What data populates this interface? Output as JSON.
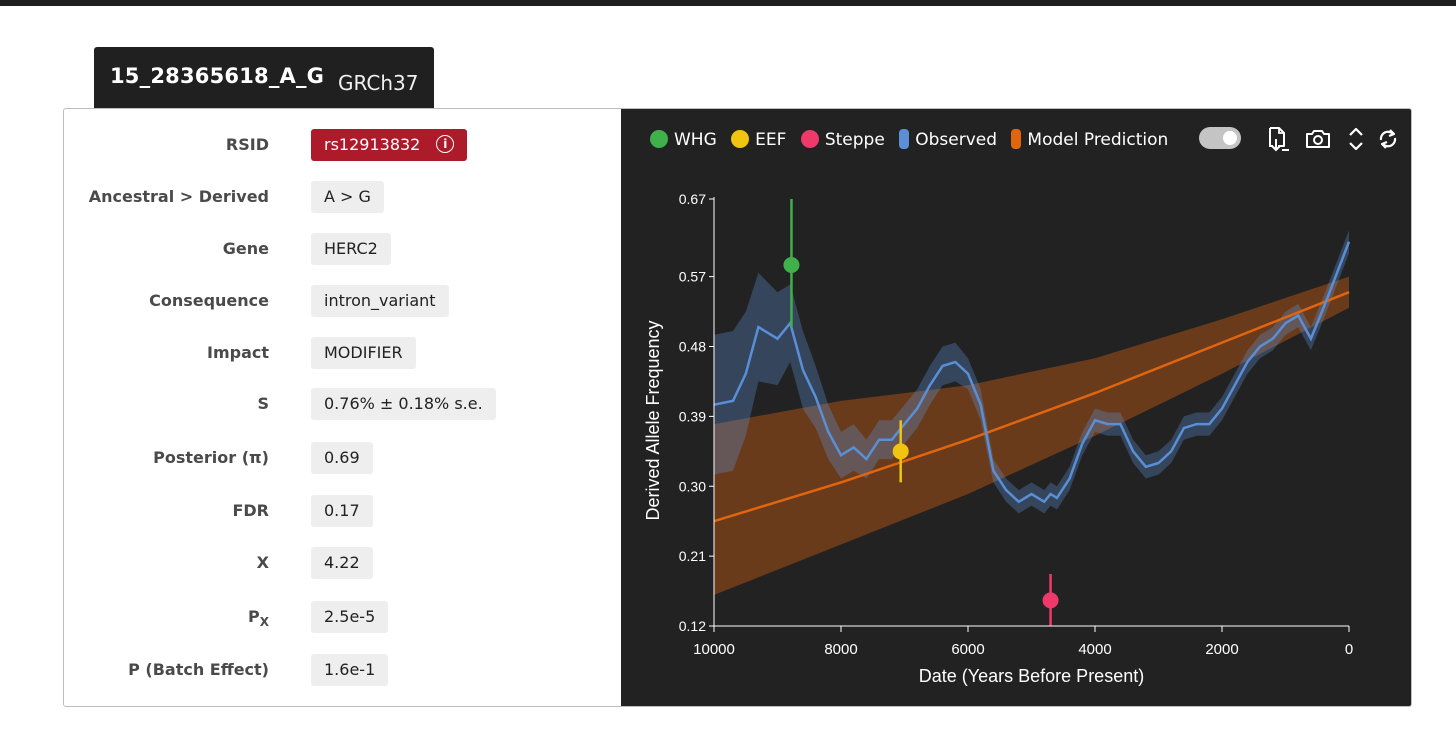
{
  "variant": {
    "id": "15_28365618_A_G",
    "build": "GRCh37"
  },
  "fields": [
    {
      "label": "RSID",
      "value": "rs12913832"
    },
    {
      "label": "Ancestral > Derived",
      "value": "A > G"
    },
    {
      "label": "Gene",
      "value": "HERC2"
    },
    {
      "label": "Consequence",
      "value": "intron_variant"
    },
    {
      "label": "Impact",
      "value": "MODIFIER"
    },
    {
      "label": "S",
      "value": "0.76% ± 0.18% s.e."
    },
    {
      "label": "Posterior (π)",
      "value": "0.69"
    },
    {
      "label": "FDR",
      "value": "0.17"
    },
    {
      "label": "X",
      "value": "4.22"
    },
    {
      "label_main": "P",
      "label_sub": "X",
      "value": "2.5e-5"
    },
    {
      "label": "P (Batch Effect)",
      "value": "1.6e-1"
    }
  ],
  "colors": {
    "rsid_badge": "#ad1b2b",
    "whg": "#3fb04a",
    "eef": "#f1c40f",
    "steppe": "#ee3a6a",
    "observed": "#5a8fd6",
    "model": "#e0650f"
  },
  "icons": [
    "info-icon",
    "download-icon",
    "camera-icon",
    "expand-icon",
    "refresh-icon"
  ],
  "toolbar": {
    "toggle_on": true
  },
  "chart_data": {
    "type": "line",
    "xlabel": "Date (Years Before Present)",
    "ylabel": "Derived Allele Frequency",
    "x_ticks": [
      10000,
      8000,
      6000,
      4000,
      2000,
      0
    ],
    "y_ticks": [
      "0.12",
      "0.21",
      "0.30",
      "0.39",
      "0.48",
      "0.57",
      "0.67"
    ],
    "xlim": [
      10000,
      0
    ],
    "ylim": [
      0.12,
      0.67
    ],
    "x_reversed": true,
    "legend": [
      "WHG",
      "EEF",
      "Steppe",
      "Observed",
      "Model Prediction"
    ],
    "legend_position": "top",
    "points": [
      {
        "name": "WHG",
        "x": 8780,
        "y": 0.585,
        "lo": 0.505,
        "hi": 0.67
      },
      {
        "name": "EEF",
        "x": 7060,
        "y": 0.345,
        "lo": 0.305,
        "hi": 0.385
      },
      {
        "name": "Steppe",
        "x": 4700,
        "y": 0.153,
        "lo": 0.12,
        "hi": 0.187
      }
    ],
    "observed": {
      "x": [
        10000,
        9700,
        9500,
        9300,
        9000,
        8800,
        8700,
        8600,
        8400,
        8200,
        8000,
        7800,
        7600,
        7400,
        7200,
        7000,
        6800,
        6600,
        6400,
        6200,
        6000,
        5800,
        5600,
        5400,
        5200,
        5000,
        4800,
        4700,
        4600,
        4400,
        4200,
        4000,
        3800,
        3600,
        3400,
        3200,
        3000,
        2800,
        2600,
        2400,
        2200,
        2000,
        1800,
        1600,
        1400,
        1200,
        1000,
        800,
        600,
        400,
        0
      ],
      "y": [
        0.405,
        0.41,
        0.445,
        0.505,
        0.49,
        0.51,
        0.48,
        0.45,
        0.415,
        0.37,
        0.34,
        0.35,
        0.335,
        0.36,
        0.36,
        0.38,
        0.4,
        0.43,
        0.455,
        0.46,
        0.445,
        0.405,
        0.32,
        0.295,
        0.28,
        0.29,
        0.28,
        0.29,
        0.285,
        0.31,
        0.355,
        0.385,
        0.38,
        0.38,
        0.345,
        0.325,
        0.33,
        0.345,
        0.375,
        0.38,
        0.38,
        0.4,
        0.43,
        0.46,
        0.48,
        0.49,
        0.51,
        0.52,
        0.49,
        0.53,
        0.615
      ],
      "band_halfwidth": [
        0.09,
        0.09,
        0.08,
        0.07,
        0.06,
        0.05,
        0.05,
        0.05,
        0.04,
        0.035,
        0.03,
        0.03,
        0.025,
        0.025,
        0.025,
        0.025,
        0.025,
        0.025,
        0.025,
        0.025,
        0.02,
        0.02,
        0.015,
        0.015,
        0.015,
        0.015,
        0.015,
        0.015,
        0.015,
        0.015,
        0.015,
        0.015,
        0.015,
        0.015,
        0.015,
        0.015,
        0.015,
        0.015,
        0.015,
        0.015,
        0.015,
        0.015,
        0.015,
        0.015,
        0.015,
        0.015,
        0.015,
        0.015,
        0.015,
        0.015,
        0.015
      ]
    },
    "model_prediction": {
      "x": [
        10000,
        8000,
        6000,
        4000,
        2000,
        0
      ],
      "y": [
        0.255,
        0.305,
        0.36,
        0.42,
        0.485,
        0.55
      ],
      "lo": [
        0.16,
        0.225,
        0.29,
        0.365,
        0.445,
        0.53
      ],
      "hi": [
        0.38,
        0.41,
        0.43,
        0.465,
        0.515,
        0.57
      ]
    }
  }
}
